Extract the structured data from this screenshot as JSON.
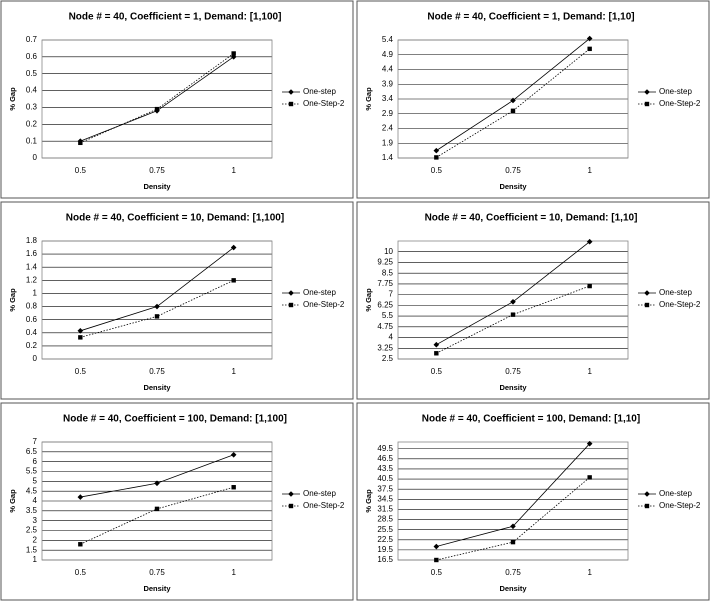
{
  "chart_data": [
    {
      "type": "line",
      "title": "Node # = 40, Coefficient = 1, Demand: [1,100]",
      "x_label": "Density",
      "y_label": "% Gap",
      "categories": [
        "0.5",
        "0.75",
        "1"
      ],
      "series": [
        {
          "name": "One-step",
          "color": "#000000",
          "dash": "solid",
          "marker": "diamond",
          "values": [
            0.1,
            0.28,
            0.6
          ]
        },
        {
          "name": "One-Step-2",
          "color": "#000000",
          "dash": "dotted",
          "marker": "square",
          "values": [
            0.09,
            0.29,
            0.62
          ]
        }
      ],
      "ylim": [
        0,
        0.7
      ],
      "yticks": [
        0,
        0.1,
        0.2,
        0.3,
        0.4,
        0.5,
        0.6,
        0.7
      ],
      "grid": true
    },
    {
      "type": "line",
      "title": "Node # = 40, Coefficient = 1, Demand: [1,10]",
      "x_label": "Density",
      "y_label": "% Gap",
      "categories": [
        "0.5",
        "0.75",
        "1"
      ],
      "series": [
        {
          "name": "One-step",
          "color": "#000000",
          "dash": "solid",
          "marker": "diamond",
          "values": [
            1.65,
            3.35,
            5.45
          ]
        },
        {
          "name": "One-Step-2",
          "color": "#000000",
          "dash": "dotted",
          "marker": "square",
          "values": [
            1.42,
            3.0,
            5.1
          ]
        }
      ],
      "ylim": [
        1.4,
        5.4
      ],
      "yticks": [
        1.4,
        1.9,
        2.4,
        2.9,
        3.4,
        3.9,
        4.4,
        4.9,
        5.4
      ],
      "grid": true
    },
    {
      "type": "line",
      "title": "Node # = 40, Coefficient = 10, Demand: [1,100]",
      "x_label": "Density",
      "y_label": "% Gap",
      "categories": [
        "0.5",
        "0.75",
        "1"
      ],
      "series": [
        {
          "name": "One-step",
          "color": "#000000",
          "dash": "solid",
          "marker": "diamond",
          "values": [
            0.43,
            0.8,
            1.7
          ]
        },
        {
          "name": "One-Step-2",
          "color": "#000000",
          "dash": "dotted",
          "marker": "square",
          "values": [
            0.33,
            0.65,
            1.2
          ]
        }
      ],
      "ylim": [
        0,
        1.8
      ],
      "yticks": [
        0,
        0.2,
        0.4,
        0.6,
        0.8,
        1,
        1.2,
        1.4,
        1.6,
        1.8
      ],
      "grid": true
    },
    {
      "type": "line",
      "title": "Node # = 40, Coefficient = 10, Demand: [1,10]",
      "x_label": "Density",
      "y_label": "% Gap",
      "categories": [
        "0.5",
        "0.75",
        "1"
      ],
      "series": [
        {
          "name": "One-step",
          "color": "#000000",
          "dash": "solid",
          "marker": "diamond",
          "values": [
            3.5,
            6.5,
            10.7
          ]
        },
        {
          "name": "One-Step-2",
          "color": "#000000",
          "dash": "dotted",
          "marker": "square",
          "values": [
            2.9,
            5.6,
            7.6
          ]
        }
      ],
      "ylim": [
        2.5,
        10.75
      ],
      "yticks": [
        2.5,
        3.25,
        4,
        4.75,
        5.5,
        6.25,
        7,
        7.75,
        8.5,
        9.25,
        10
      ],
      "grid": true
    },
    {
      "type": "line",
      "title": "Node # = 40, Coefficient = 100, Demand: [1,100]",
      "x_label": "Density",
      "y_label": "% Gap",
      "categories": [
        "0.5",
        "0.75",
        "1"
      ],
      "series": [
        {
          "name": "One-step",
          "color": "#000000",
          "dash": "solid",
          "marker": "diamond",
          "values": [
            4.2,
            4.9,
            6.35
          ]
        },
        {
          "name": "One-Step-2",
          "color": "#000000",
          "dash": "dotted",
          "marker": "square",
          "values": [
            1.8,
            3.6,
            4.7
          ]
        }
      ],
      "ylim": [
        1,
        7
      ],
      "yticks": [
        1,
        1.5,
        2,
        2.5,
        3,
        3.5,
        4,
        4.5,
        5,
        5.5,
        6,
        6.5,
        7
      ],
      "grid": true
    },
    {
      "type": "line",
      "title": "Node # = 40, Coefficient = 100, Demand: [1,10]",
      "x_label": "Density",
      "y_label": "% Gap",
      "categories": [
        "0.5",
        "0.75",
        "1"
      ],
      "series": [
        {
          "name": "One-step",
          "color": "#000000",
          "dash": "solid",
          "marker": "diamond",
          "values": [
            20.5,
            26.5,
            51
          ]
        },
        {
          "name": "One-Step-2",
          "color": "#000000",
          "dash": "dotted",
          "marker": "square",
          "values": [
            16.5,
            21.8,
            41
          ]
        }
      ],
      "ylim": [
        16.5,
        51.5
      ],
      "yticks": [
        16.5,
        19.5,
        22.5,
        25.5,
        28.5,
        31.5,
        34.5,
        37.5,
        40.5,
        43.5,
        46.5,
        49.5
      ],
      "grid": true
    }
  ]
}
